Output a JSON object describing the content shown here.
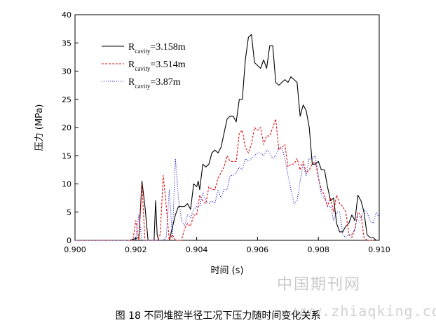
{
  "chart_data": {
    "type": "line",
    "xlabel": "时间 (s)",
    "ylabel": "压力 (MPa)",
    "xlim": [
      0.9,
      0.91
    ],
    "ylim": [
      0,
      40
    ],
    "xticks": [
      0.9,
      0.902,
      0.904,
      0.906,
      0.908,
      0.91
    ],
    "xtick_labels": [
      "0.900",
      "0.902",
      "0.904",
      "0.906",
      "0.908",
      "0.910"
    ],
    "yticks": [
      0,
      5,
      10,
      15,
      20,
      25,
      30,
      35,
      40
    ],
    "ytick_labels": [
      "0",
      "5",
      "10",
      "15",
      "20",
      "25",
      "30",
      "35",
      "40"
    ],
    "legend_placement": "top-left",
    "grid": false,
    "series": [
      {
        "name": "R_cavity=3.158m",
        "legend_main": "R",
        "legend_sub": "cavity",
        "legend_tail": "=3.158m",
        "color": "#000000",
        "style": "solid",
        "x": [
          0.9,
          0.9018,
          0.9021,
          0.9022,
          0.9023,
          0.9024,
          0.9025,
          0.9026,
          0.90265,
          0.9027,
          0.90275,
          0.9029,
          0.9031,
          0.9033,
          0.9034,
          0.9035,
          0.9036,
          0.9037,
          0.9038,
          0.9039,
          0.904,
          0.90405,
          0.9041,
          0.9042,
          0.9043,
          0.9044,
          0.9045,
          0.9046,
          0.9047,
          0.9048,
          0.905,
          0.9051,
          0.9052,
          0.9053,
          0.9054,
          0.9055,
          0.9056,
          0.9057,
          0.9058,
          0.9059,
          0.906,
          0.9061,
          0.9062,
          0.9063,
          0.9064,
          0.9065,
          0.9066,
          0.9067,
          0.9068,
          0.9069,
          0.907,
          0.9071,
          0.9072,
          0.9073,
          0.9074,
          0.9075,
          0.9076,
          0.9077,
          0.9078,
          0.9079,
          0.908,
          0.9081,
          0.9082,
          0.9083,
          0.9084,
          0.9085,
          0.9086,
          0.9087,
          0.9088,
          0.9089,
          0.909,
          0.9091,
          0.9092,
          0.9093,
          0.9094,
          0.9095,
          0.9096,
          0.9097,
          0.9098,
          0.9099,
          0.91
        ],
        "y": [
          0,
          0,
          0.5,
          10.5,
          6,
          0,
          0,
          0,
          7,
          1,
          0,
          0,
          0,
          4.5,
          6,
          6,
          6,
          6.5,
          5.5,
          10,
          9.5,
          10.5,
          9,
          13.5,
          13,
          13.5,
          15.5,
          16,
          15.5,
          16.5,
          21.5,
          22,
          22,
          21,
          25,
          25,
          32,
          36,
          36.5,
          31.5,
          31,
          30.5,
          32,
          30.5,
          34.5,
          34.5,
          28,
          27.5,
          28,
          28.5,
          28,
          29,
          28.5,
          28,
          22,
          24,
          23,
          20,
          13.5,
          13.5,
          14,
          12.5,
          12.5,
          9.5,
          7,
          7.5,
          3,
          1.5,
          1.5,
          2.5,
          3,
          4.5,
          3.5,
          8,
          7,
          5,
          1,
          0.5,
          0.5,
          0,
          0
        ]
      },
      {
        "name": "R_cavity=3.514m",
        "legend_main": "R",
        "legend_sub": "cavity",
        "legend_tail": "=3.514m",
        "color": "#e01010",
        "style": "dashed",
        "x": [
          0.9,
          0.9017,
          0.9019,
          0.902,
          0.9021,
          0.9022,
          0.9023,
          0.9025,
          0.9027,
          0.9028,
          0.9029,
          0.903,
          0.9031,
          0.9032,
          0.9033,
          0.9035,
          0.9036,
          0.9037,
          0.9038,
          0.9039,
          0.904,
          0.9041,
          0.9042,
          0.9043,
          0.9044,
          0.9045,
          0.9046,
          0.9047,
          0.9048,
          0.9049,
          0.905,
          0.9051,
          0.9052,
          0.9053,
          0.9054,
          0.9055,
          0.9056,
          0.9057,
          0.9058,
          0.9059,
          0.906,
          0.9061,
          0.9062,
          0.9063,
          0.9064,
          0.9065,
          0.9066,
          0.9067,
          0.9068,
          0.9069,
          0.907,
          0.9071,
          0.9072,
          0.9073,
          0.9074,
          0.9075,
          0.9076,
          0.9077,
          0.9078,
          0.9079,
          0.908,
          0.9081,
          0.9082,
          0.9083,
          0.9084,
          0.9085,
          0.9086,
          0.9087,
          0.9088,
          0.9089,
          0.909,
          0.9091,
          0.9092,
          0.9093,
          0.9094,
          0.9095,
          0.9096,
          0.9097,
          0.9098
        ],
        "y": [
          0,
          0,
          0,
          3.5,
          0,
          10,
          0,
          0,
          0,
          1,
          11.5,
          6,
          0,
          1,
          0,
          0,
          2,
          3,
          2.5,
          4.5,
          4.5,
          8,
          7,
          6.5,
          9.5,
          9,
          9,
          11,
          12,
          13,
          15,
          14,
          14,
          14,
          19,
          19.5,
          16.5,
          15.5,
          17,
          20,
          19.5,
          20,
          17,
          18.5,
          18.5,
          20,
          21.5,
          16,
          16.5,
          17,
          13,
          13.5,
          13.5,
          14.5,
          12.5,
          14,
          12,
          12.5,
          13.5,
          14,
          11,
          9,
          8,
          6,
          7.5,
          5,
          8,
          6.5,
          6,
          5,
          1,
          0.5,
          2,
          5,
          4.5,
          0.5,
          0,
          0,
          0
        ]
      },
      {
        "name": "R_cavity=3.87m",
        "legend_main": "R",
        "legend_sub": "cavity",
        "legend_tail": "=3.87m",
        "color": "#1515c8",
        "style": "dotted",
        "x": [
          0.9,
          0.9019,
          0.902,
          0.9021,
          0.9022,
          0.9024,
          0.9029,
          0.903,
          0.9031,
          0.9032,
          0.9033,
          0.9034,
          0.9035,
          0.9036,
          0.9037,
          0.9038,
          0.9039,
          0.904,
          0.9041,
          0.9042,
          0.9043,
          0.9044,
          0.9045,
          0.9046,
          0.9047,
          0.9048,
          0.9049,
          0.905,
          0.9051,
          0.9052,
          0.9053,
          0.9054,
          0.9055,
          0.9056,
          0.9057,
          0.9058,
          0.9059,
          0.906,
          0.9061,
          0.9062,
          0.9063,
          0.9064,
          0.9065,
          0.9066,
          0.9067,
          0.9068,
          0.9069,
          0.907,
          0.9071,
          0.9072,
          0.9073,
          0.9074,
          0.9075,
          0.9076,
          0.9077,
          0.9078,
          0.9079,
          0.908,
          0.9081,
          0.9082,
          0.9083,
          0.9084,
          0.9085,
          0.9086,
          0.9087,
          0.9088,
          0.9089,
          0.909,
          0.9091,
          0.9092,
          0.9093,
          0.9094,
          0.9095,
          0.9096,
          0.9097,
          0.9098,
          0.9099,
          0.91
        ],
        "y": [
          0,
          0,
          0.5,
          4.5,
          0,
          0,
          0,
          0.5,
          9,
          0.5,
          14.5,
          7.5,
          3.5,
          2.5,
          4.5,
          4,
          5.5,
          6,
          6,
          8.5,
          7,
          6.5,
          7,
          6.5,
          9,
          7.5,
          9,
          9,
          11.5,
          11.5,
          12,
          13,
          12.5,
          14.5,
          14,
          14.5,
          15,
          15.5,
          15.5,
          15,
          16,
          15.5,
          14.5,
          15,
          16.5,
          16.5,
          14.5,
          11.5,
          9,
          6.5,
          7,
          10.5,
          13.5,
          11.5,
          14.5,
          14.5,
          15,
          11.5,
          8,
          7.5,
          6,
          6,
          3.5,
          5,
          5,
          1,
          0.5,
          1,
          1,
          2,
          4.5,
          4,
          5.5,
          5,
          3.5,
          3,
          5,
          4
        ]
      }
    ]
  },
  "caption": "图 18 不同堆腔半径工况下压力随时间变化关系",
  "watermark_cn": "中国期刊网",
  "watermark_url": "www.zhiaqking.com"
}
